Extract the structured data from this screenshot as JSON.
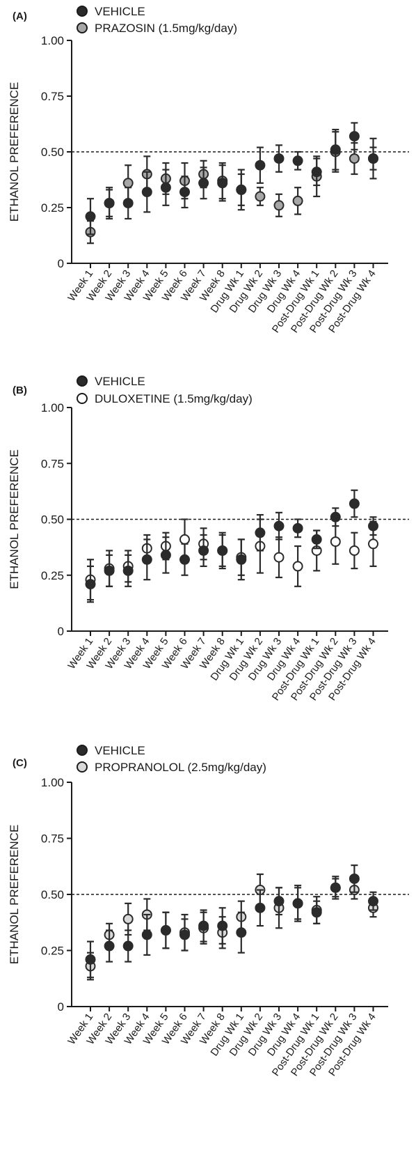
{
  "chart_data": [
    {
      "type": "scatter",
      "panel_label": "(A)",
      "ylabel": "ETHANOL PREFERENCE",
      "ylim": [
        0,
        1
      ],
      "yticks": [
        "0",
        "0.25",
        "0.50",
        "0.75",
        "1.00"
      ],
      "reference_line": 0.5,
      "categories": [
        "Week 1",
        "Week 2",
        "Week 3",
        "Week 4",
        "Week 5",
        "Week 6",
        "Week 7",
        "Week 8",
        "Drug Wk 1",
        "Drug Wk 2",
        "Drug Wk 3",
        "Drug Wk 4",
        "Post-Drug Wk 1",
        "Post-Drug Wk 2",
        "Post-Drug Wk 3",
        "Post-Drug Wk 4"
      ],
      "series": [
        {
          "name": "VEHICLE",
          "marker": "filled-dark",
          "color": "#2b2b2b",
          "values": [
            0.21,
            0.27,
            0.27,
            0.32,
            0.34,
            0.32,
            0.36,
            0.36,
            0.33,
            0.44,
            0.47,
            0.46,
            0.41,
            0.51,
            0.57,
            0.47
          ],
          "errors": [
            0.08,
            0.07,
            0.07,
            0.09,
            0.08,
            0.07,
            0.07,
            0.08,
            0.09,
            0.08,
            0.06,
            0.04,
            0.06,
            0.09,
            0.06,
            0.09
          ]
        },
        {
          "name": "PRAZOSIN (1.5mg/kg/day)",
          "marker": "filled-gray",
          "color": "#a6a6a6",
          "values": [
            0.14,
            0.27,
            0.36,
            0.4,
            0.38,
            0.37,
            0.4,
            0.37,
            0.33,
            0.3,
            0.26,
            0.28,
            0.39,
            0.5,
            0.47,
            0.47
          ],
          "errors": [
            0.05,
            0.06,
            0.08,
            0.08,
            0.07,
            0.08,
            0.06,
            0.08,
            0.07,
            0.04,
            0.05,
            0.06,
            0.09,
            0.09,
            0.07,
            0.05
          ]
        }
      ]
    },
    {
      "type": "scatter",
      "panel_label": "(B)",
      "ylabel": "ETHANOL PREFERENCE",
      "ylim": [
        0,
        1
      ],
      "yticks": [
        "0",
        "0.25",
        "0.50",
        "0.75",
        "1.00"
      ],
      "reference_line": 0.5,
      "categories": [
        "Week 1",
        "Week 2",
        "Week 3",
        "Week 4",
        "Week 5",
        "Week 6",
        "Week 7",
        "Week 8",
        "Drug Wk 1",
        "Drug Wk 2",
        "Drug Wk 3",
        "Drug Wk 4",
        "Post-Drug Wk 1",
        "Post-Drug Wk 2",
        "Post-Drug Wk 3",
        "Post-Drug Wk 4"
      ],
      "series": [
        {
          "name": "VEHICLE",
          "marker": "filled-dark",
          "color": "#2b2b2b",
          "values": [
            0.21,
            0.27,
            0.27,
            0.32,
            0.34,
            0.32,
            0.36,
            0.36,
            0.32,
            0.44,
            0.47,
            0.46,
            0.41,
            0.51,
            0.57,
            0.47
          ],
          "errors": [
            0.08,
            0.07,
            0.07,
            0.09,
            0.08,
            0.07,
            0.07,
            0.08,
            0.09,
            0.08,
            0.06,
            0.04,
            0.04,
            0.04,
            0.06,
            0.04
          ]
        },
        {
          "name": "DULOXETINE (1.5mg/kg/day)",
          "marker": "open",
          "color": "#ffffff",
          "values": [
            0.23,
            0.28,
            0.29,
            0.37,
            0.38,
            0.41,
            0.39,
            0.36,
            0.33,
            0.38,
            0.33,
            0.29,
            0.36,
            0.4,
            0.36,
            0.39
          ],
          "errors": [
            0.09,
            0.08,
            0.07,
            0.06,
            0.06,
            0.09,
            0.07,
            0.07,
            0.08,
            0.12,
            0.09,
            0.09,
            0.09,
            0.1,
            0.08,
            0.1
          ]
        }
      ]
    },
    {
      "type": "scatter",
      "panel_label": "(C)",
      "ylabel": "ETHANOL PREFERENCE",
      "ylim": [
        0,
        1
      ],
      "yticks": [
        "0",
        "0.25",
        "0.50",
        "0.75",
        "1.00"
      ],
      "reference_line": 0.5,
      "categories": [
        "Week 1",
        "Week 2",
        "Week 3",
        "Week 4",
        "Week 5",
        "Week 6",
        "Week 7",
        "Week 8",
        "Drug Wk 1",
        "Drug Wk 2",
        "Drug Wk 3",
        "Drug Wk 4",
        "Post-Drug Wk 1",
        "Post-Drug Wk 2",
        "Post-Drug Wk 3",
        "Post-Drug Wk 4"
      ],
      "series": [
        {
          "name": "VEHICLE",
          "marker": "filled-dark",
          "color": "#2b2b2b",
          "values": [
            0.21,
            0.27,
            0.27,
            0.32,
            0.34,
            0.32,
            0.36,
            0.36,
            0.33,
            0.44,
            0.47,
            0.46,
            0.42,
            0.53,
            0.57,
            0.47
          ],
          "errors": [
            0.08,
            0.07,
            0.07,
            0.09,
            0.08,
            0.07,
            0.07,
            0.08,
            0.09,
            0.08,
            0.06,
            0.08,
            0.05,
            0.05,
            0.06,
            0.04
          ]
        },
        {
          "name": "PROPRANOLOL (2.5mg/kg/day)",
          "marker": "filled-light",
          "color": "#d9d9d9",
          "values": [
            0.18,
            0.32,
            0.39,
            0.41,
            0.34,
            0.33,
            0.35,
            0.33,
            0.4,
            0.52,
            0.44,
            0.46,
            0.43,
            0.53,
            0.52,
            0.44
          ],
          "errors": [
            0.06,
            0.05,
            0.07,
            0.07,
            0.08,
            0.08,
            0.07,
            0.07,
            0.07,
            0.07,
            0.09,
            0.07,
            0.06,
            0.04,
            0.04,
            0.04
          ]
        }
      ]
    }
  ]
}
